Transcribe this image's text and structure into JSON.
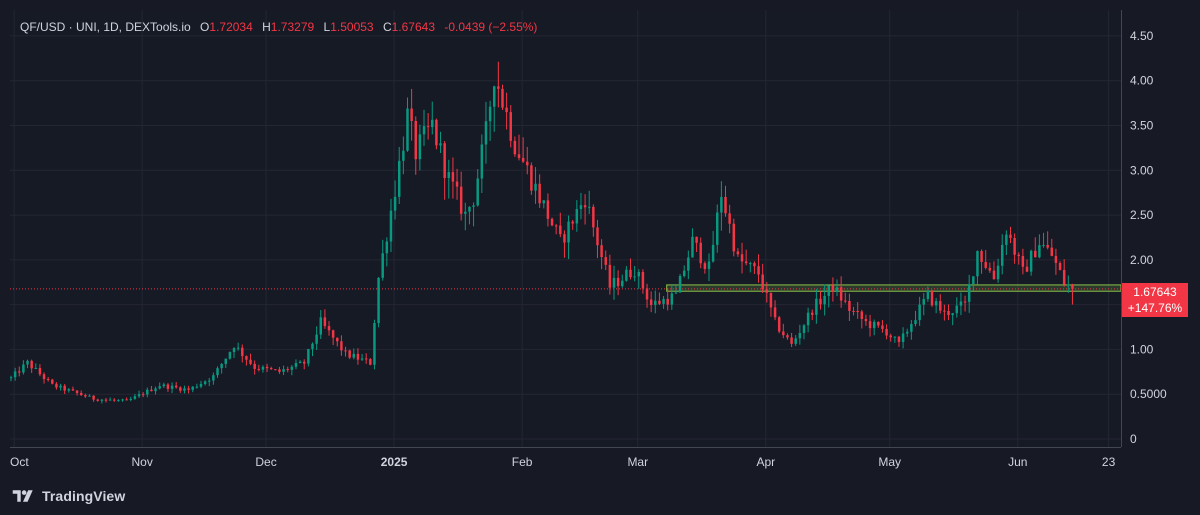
{
  "legend": {
    "symbol": "QF/USD · UNI, 1D, DEXTools.io",
    "open_key": "O",
    "open": "1.72034",
    "high_key": "H",
    "high": "1.73279",
    "low_key": "L",
    "low": "1.50053",
    "close_key": "C",
    "close": "1.67643",
    "change": "-0.0439 (−2.55%)"
  },
  "last_price": {
    "price": "1.67643",
    "change_pct": "+147.76%"
  },
  "footer": {
    "brand": "TradingView"
  },
  "colors": {
    "up": "#089981",
    "down": "#f23645",
    "grid": "#242733",
    "text": "#d1d4dc",
    "zone": "#8bc34a"
  },
  "chart_data": {
    "type": "candlestick",
    "title": "QF/USD · UNI, 1D, DEXTools.io",
    "y_axis": {
      "ticks": [
        0,
        0.5,
        1.0,
        1.5,
        2.0,
        2.5,
        3.0,
        3.5,
        4.0,
        4.5
      ],
      "tick_labels": [
        "0",
        "0.5000",
        "1.00",
        "",
        "2.00",
        "2.50",
        "3.00",
        "3.50",
        "4.00",
        "4.50"
      ],
      "range": [
        0,
        4.7
      ]
    },
    "x_axis": {
      "range": [
        "2024-09-30",
        "2025-06-26"
      ],
      "ticks": [
        {
          "date": "2024-10-01",
          "label": "Oct",
          "bold": false
        },
        {
          "date": "2024-11-01",
          "label": "Nov",
          "bold": false
        },
        {
          "date": "2024-12-01",
          "label": "Dec",
          "bold": false
        },
        {
          "date": "2025-01-01",
          "label": "2025",
          "bold": true
        },
        {
          "date": "2025-02-01",
          "label": "Feb",
          "bold": false
        },
        {
          "date": "2025-03-01",
          "label": "Mar",
          "bold": false
        },
        {
          "date": "2025-04-01",
          "label": "Apr",
          "bold": false
        },
        {
          "date": "2025-05-01",
          "label": "May",
          "bold": false
        },
        {
          "date": "2025-06-01",
          "label": "Jun",
          "bold": false
        },
        {
          "date": "2025-06-23",
          "label": "23",
          "bold": false
        }
      ]
    },
    "start_date": "2024-09-30",
    "anchors": [
      [
        "2024-09-30",
        0.68
      ],
      [
        "2024-10-04",
        0.85
      ],
      [
        "2024-10-10",
        0.6
      ],
      [
        "2024-10-20",
        0.45
      ],
      [
        "2024-10-28",
        0.42
      ],
      [
        "2024-11-05",
        0.6
      ],
      [
        "2024-11-12",
        0.55
      ],
      [
        "2024-11-18",
        0.7
      ],
      [
        "2024-11-23",
        1.05
      ],
      [
        "2024-11-28",
        0.8
      ],
      [
        "2024-12-04",
        0.75
      ],
      [
        "2024-12-10",
        0.85
      ],
      [
        "2024-12-14",
        1.3
      ],
      [
        "2024-12-20",
        0.95
      ],
      [
        "2024-12-26",
        0.85
      ],
      [
        "2024-12-28",
        1.8
      ],
      [
        "2025-01-01",
        2.8
      ],
      [
        "2025-01-04",
        3.6
      ],
      [
        "2025-01-06",
        3.2
      ],
      [
        "2025-01-10",
        3.5
      ],
      [
        "2025-01-14",
        2.9
      ],
      [
        "2025-01-18",
        2.5
      ],
      [
        "2025-01-20",
        2.7
      ],
      [
        "2025-01-23",
        3.4
      ],
      [
        "2025-01-25",
        4.1
      ],
      [
        "2025-01-30",
        3.3
      ],
      [
        "2025-02-05",
        2.7
      ],
      [
        "2025-02-10",
        2.2
      ],
      [
        "2025-02-16",
        2.7
      ],
      [
        "2025-02-22",
        1.7
      ],
      [
        "2025-02-28",
        1.9
      ],
      [
        "2025-03-04",
        1.5
      ],
      [
        "2025-03-10",
        1.6
      ],
      [
        "2025-03-14",
        2.2
      ],
      [
        "2025-03-18",
        1.9
      ],
      [
        "2025-03-21",
        2.75
      ],
      [
        "2025-03-25",
        2.0
      ],
      [
        "2025-03-30",
        1.85
      ],
      [
        "2025-04-03",
        1.3
      ],
      [
        "2025-04-07",
        1.05
      ],
      [
        "2025-04-12",
        1.45
      ],
      [
        "2025-04-17",
        1.7
      ],
      [
        "2025-04-21",
        1.45
      ],
      [
        "2025-04-25",
        1.3
      ],
      [
        "2025-04-30",
        1.2
      ],
      [
        "2025-05-03",
        1.05
      ],
      [
        "2025-05-06",
        1.3
      ],
      [
        "2025-05-10",
        1.6
      ],
      [
        "2025-05-14",
        1.4
      ],
      [
        "2025-05-19",
        1.5
      ],
      [
        "2025-05-22",
        2.1
      ],
      [
        "2025-05-26",
        1.8
      ],
      [
        "2025-05-29",
        2.35
      ],
      [
        "2025-06-02",
        1.85
      ],
      [
        "2025-06-06",
        2.2
      ],
      [
        "2025-06-09",
        2.05
      ],
      [
        "2025-06-12",
        1.75
      ],
      [
        "2025-06-14",
        1.68
      ]
    ],
    "last_close": 1.67643,
    "zone": {
      "from": "2025-03-08",
      "to": "2025-06-26",
      "low": 1.65,
      "high": 1.72
    }
  }
}
